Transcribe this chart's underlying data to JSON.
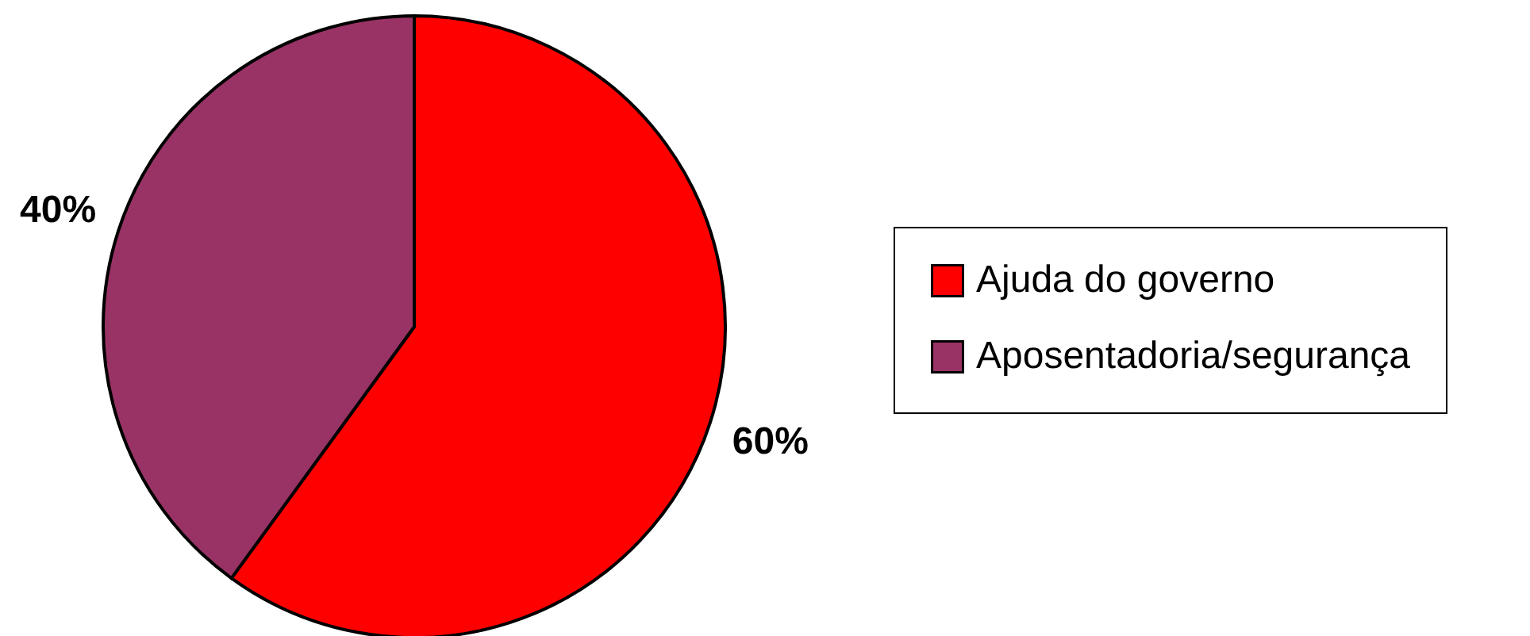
{
  "chart_data": {
    "type": "pie",
    "categories": [
      "Ajuda do governo",
      "Aposentadoria/segurança"
    ],
    "values": [
      60,
      40
    ],
    "colors": [
      "#ff0000",
      "#993366"
    ],
    "value_labels": [
      "60%",
      "40%"
    ],
    "legend": "right"
  }
}
